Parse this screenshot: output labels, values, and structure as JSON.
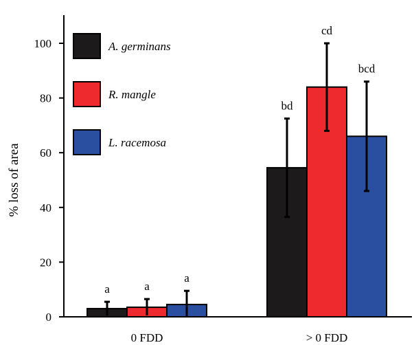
{
  "chart_data": {
    "type": "bar",
    "ylabel": "% loss of area",
    "xlabel": "",
    "ylim": [
      0,
      110
    ],
    "yticks": [
      0,
      20,
      40,
      60,
      80,
      100
    ],
    "categories": [
      "0 FDD",
      "> 0 FDD"
    ],
    "legend_position": "top-left",
    "series": [
      {
        "name": "A. germinans",
        "color": "#1c1a1b",
        "values": [
          3,
          54.5
        ],
        "errors": [
          2.5,
          18
        ],
        "labels": [
          "a",
          "bd"
        ]
      },
      {
        "name": "R. mangle",
        "color": "#ee2a2f",
        "values": [
          3.5,
          84
        ],
        "errors": [
          3,
          16
        ],
        "labels": [
          "a",
          "cd"
        ]
      },
      {
        "name": "L. racemosa",
        "color": "#2b4fa0",
        "values": [
          4.5,
          66
        ],
        "errors": [
          5,
          20
        ],
        "labels": [
          "a",
          "bcd"
        ]
      }
    ]
  }
}
